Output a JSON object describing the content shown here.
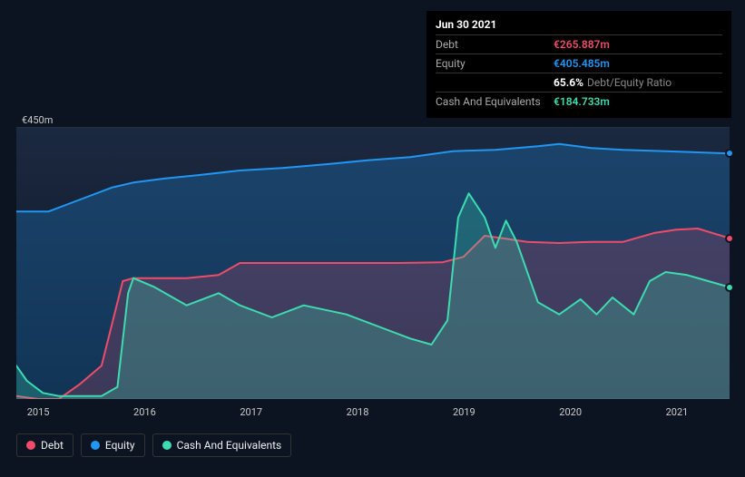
{
  "tooltip": {
    "date": "Jun 30 2021",
    "rows": [
      {
        "label": "Debt",
        "value": "€265.887m",
        "color": "#ef4c6a"
      },
      {
        "label": "Equity",
        "value": "€405.485m",
        "color": "#2196f3"
      },
      {
        "label": "",
        "ratio_pct": "65.6%",
        "ratio_label": "Debt/Equity Ratio"
      },
      {
        "label": "Cash And Equivalents",
        "value": "€184.733m",
        "color": "#3ddcb0"
      }
    ]
  },
  "chart": {
    "type": "line-area",
    "background_color": "#0d1421",
    "plot_background": "linear-gradient(#1a2332,#0d1421)",
    "grid_color": "#2a3544",
    "ylim": [
      0,
      450
    ],
    "y_labels": [
      {
        "text": "€450m",
        "v": 450
      },
      {
        "text": "€0",
        "v": 0
      }
    ],
    "x_years": [
      "2015",
      "2016",
      "2017",
      "2018",
      "2019",
      "2020",
      "2021"
    ],
    "x_range": [
      2014.9,
      2021.6
    ],
    "series": [
      {
        "name": "Equity",
        "color": "#2196f3",
        "fill": "rgba(33,150,243,0.25)",
        "stroke_width": 2,
        "data": [
          [
            2014.9,
            310
          ],
          [
            2015.2,
            310
          ],
          [
            2015.5,
            330
          ],
          [
            2015.8,
            350
          ],
          [
            2016.0,
            358
          ],
          [
            2016.3,
            365
          ],
          [
            2016.6,
            370
          ],
          [
            2017.0,
            378
          ],
          [
            2017.4,
            382
          ],
          [
            2017.8,
            388
          ],
          [
            2018.2,
            395
          ],
          [
            2018.6,
            400
          ],
          [
            2019.0,
            410
          ],
          [
            2019.4,
            412
          ],
          [
            2019.8,
            418
          ],
          [
            2020.0,
            422
          ],
          [
            2020.3,
            415
          ],
          [
            2020.6,
            412
          ],
          [
            2021.0,
            410
          ],
          [
            2021.3,
            408
          ],
          [
            2021.6,
            406
          ]
        ]
      },
      {
        "name": "Debt",
        "color": "#ef4c6a",
        "fill": "rgba(239,76,106,0.20)",
        "stroke_width": 2,
        "data": [
          [
            2014.9,
            5
          ],
          [
            2015.1,
            0
          ],
          [
            2015.3,
            0
          ],
          [
            2015.5,
            25
          ],
          [
            2015.7,
            55
          ],
          [
            2015.9,
            195
          ],
          [
            2016.0,
            200
          ],
          [
            2016.5,
            200
          ],
          [
            2016.8,
            205
          ],
          [
            2017.0,
            225
          ],
          [
            2017.5,
            225
          ],
          [
            2018.0,
            225
          ],
          [
            2018.5,
            225
          ],
          [
            2018.9,
            226
          ],
          [
            2019.1,
            235
          ],
          [
            2019.3,
            270
          ],
          [
            2019.5,
            265
          ],
          [
            2019.7,
            260
          ],
          [
            2020.0,
            258
          ],
          [
            2020.3,
            260
          ],
          [
            2020.6,
            260
          ],
          [
            2020.9,
            275
          ],
          [
            2021.1,
            280
          ],
          [
            2021.3,
            282
          ],
          [
            2021.6,
            266
          ]
        ]
      },
      {
        "name": "Cash And Equivalents",
        "color": "#3ddcb0",
        "fill": "rgba(61,220,176,0.25)",
        "stroke_width": 2,
        "data": [
          [
            2014.9,
            55
          ],
          [
            2015.0,
            30
          ],
          [
            2015.15,
            10
          ],
          [
            2015.3,
            5
          ],
          [
            2015.5,
            5
          ],
          [
            2015.7,
            5
          ],
          [
            2015.85,
            20
          ],
          [
            2015.95,
            175
          ],
          [
            2016.0,
            200
          ],
          [
            2016.2,
            185
          ],
          [
            2016.5,
            155
          ],
          [
            2016.8,
            175
          ],
          [
            2017.0,
            155
          ],
          [
            2017.3,
            135
          ],
          [
            2017.6,
            155
          ],
          [
            2018.0,
            140
          ],
          [
            2018.3,
            120
          ],
          [
            2018.6,
            100
          ],
          [
            2018.8,
            90
          ],
          [
            2018.95,
            130
          ],
          [
            2019.05,
            300
          ],
          [
            2019.15,
            340
          ],
          [
            2019.3,
            300
          ],
          [
            2019.4,
            250
          ],
          [
            2019.5,
            295
          ],
          [
            2019.6,
            260
          ],
          [
            2019.8,
            160
          ],
          [
            2020.0,
            140
          ],
          [
            2020.2,
            165
          ],
          [
            2020.35,
            140
          ],
          [
            2020.5,
            168
          ],
          [
            2020.7,
            140
          ],
          [
            2020.85,
            195
          ],
          [
            2021.0,
            210
          ],
          [
            2021.2,
            205
          ],
          [
            2021.4,
            195
          ],
          [
            2021.6,
            185
          ]
        ]
      }
    ],
    "cursor_x": 2021.6,
    "cursor_dots": [
      {
        "series": "Equity",
        "color": "#2196f3",
        "y": 406
      },
      {
        "series": "Debt",
        "color": "#ef4c6a",
        "y": 266
      },
      {
        "series": "Cash And Equivalents",
        "color": "#3ddcb0",
        "y": 185
      }
    ]
  },
  "legend": [
    {
      "label": "Debt",
      "color": "#ef4c6a"
    },
    {
      "label": "Equity",
      "color": "#2196f3"
    },
    {
      "label": "Cash And Equivalents",
      "color": "#3ddcb0"
    }
  ]
}
